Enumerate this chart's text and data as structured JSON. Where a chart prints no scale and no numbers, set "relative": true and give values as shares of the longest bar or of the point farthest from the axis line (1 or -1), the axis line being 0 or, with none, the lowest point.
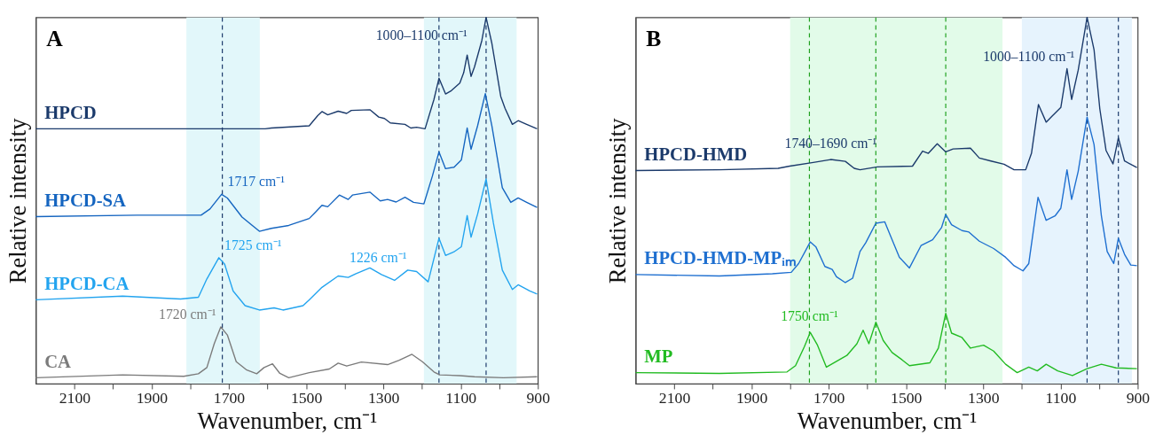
{
  "chart_data": [
    {
      "type": "line",
      "title": "A",
      "xlabel": "Wavenumber, cm⁻¹",
      "ylabel": "Relative intensity",
      "relative": true,
      "xlim": [
        2200,
        900
      ],
      "xticks": [
        2100,
        {
          "value": 2000,
          "label": null
        },
        1900,
        {
          "value": 1800,
          "label": null
        },
        1700,
        {
          "value": 1600,
          "label": null
        },
        1500,
        {
          "value": 1400,
          "label": null
        },
        1300,
        {
          "value": 1200,
          "label": null
        },
        1100,
        {
          "value": 1000,
          "label": null
        },
        900
      ],
      "bands": [
        {
          "axis": "x",
          "from": 1810,
          "to": 1620,
          "color": "#e2f7fa"
        },
        {
          "axis": "x",
          "from": 1195,
          "to": 955,
          "color": "#e2f7fa"
        }
      ],
      "ref_lines": [
        {
          "axis": "x",
          "value": 1717,
          "color": "#1b3a6b",
          "line_style": "dashed"
        },
        {
          "axis": "x",
          "value": 1156,
          "color": "#1b3a6b",
          "line_style": "dashed"
        },
        {
          "axis": "x",
          "value": 1034,
          "color": "#1b3a6b",
          "line_style": "dashed"
        }
      ],
      "annotations": [
        {
          "text": "1000–1100 cm⁻¹",
          "x": 1060,
          "y": 0.88
        },
        {
          "text": "1717 cm⁻¹",
          "x": 1717,
          "y": 0.517
        },
        {
          "text": "1725 cm⁻¹",
          "x": 1725,
          "y": 0.344
        },
        {
          "text": "1226 cm⁻¹",
          "x": 1226,
          "y": 0.31
        },
        {
          "text": "1720 cm⁻¹",
          "x": 1720,
          "y": 0.155
        }
      ],
      "series": [
        {
          "name": "HPCD",
          "color": "#1b3a6b",
          "x": [
            2200,
            1606,
            1590,
            1492,
            1470,
            1459,
            1444,
            1417,
            1395,
            1383,
            1335,
            1312,
            1297,
            1282,
            1244,
            1229,
            1214,
            1192,
            1169,
            1156,
            1139,
            1124,
            1102,
            1092,
            1083,
            1073,
            1064,
            1045,
            1034,
            1019,
            996,
            985,
            966,
            951,
            929,
            902
          ],
          "values": [
            0.696,
            0.696,
            0.698,
            0.704,
            0.732,
            0.743,
            0.734,
            0.744,
            0.738,
            0.746,
            0.748,
            0.728,
            0.724,
            0.712,
            0.708,
            0.698,
            0.7,
            0.696,
            0.776,
            0.834,
            0.791,
            0.8,
            0.821,
            0.849,
            0.897,
            0.839,
            0.865,
            0.937,
            1.0,
            0.929,
            0.784,
            0.752,
            0.708,
            0.718,
            0.708,
            0.696
          ]
        },
        {
          "name": "HPCD-SA",
          "color": "#1565c0",
          "x": [
            2200,
            1938,
            1772,
            1749,
            1719,
            1704,
            1666,
            1621,
            1590,
            1545,
            1492,
            1477,
            1459,
            1444,
            1414,
            1391,
            1380,
            1335,
            1308,
            1289,
            1267,
            1244,
            1222,
            1195,
            1173,
            1156,
            1139,
            1117,
            1098,
            1083,
            1073,
            1056,
            1036,
            1019,
            992,
            970,
            951,
            929,
            902
          ],
          "values": [
            0.456,
            0.46,
            0.46,
            0.477,
            0.517,
            0.507,
            0.455,
            0.416,
            0.424,
            0.432,
            0.451,
            0.467,
            0.487,
            0.483,
            0.515,
            0.503,
            0.515,
            0.523,
            0.499,
            0.503,
            0.496,
            0.509,
            0.495,
            0.491,
            0.567,
            0.633,
            0.587,
            0.591,
            0.611,
            0.698,
            0.64,
            0.704,
            0.792,
            0.704,
            0.535,
            0.495,
            0.507,
            0.495,
            0.481
          ]
        },
        {
          "name": "HPCD-CA",
          "color": "#23a4ef",
          "x": [
            2200,
            1975,
            1825,
            1779,
            1757,
            1726,
            1711,
            1689,
            1658,
            1621,
            1583,
            1560,
            1508,
            1492,
            1459,
            1417,
            1391,
            1372,
            1335,
            1305,
            1271,
            1237,
            1214,
            1184,
            1156,
            1139,
            1117,
            1098,
            1083,
            1073,
            1056,
            1034,
            1015,
            992,
            966,
            951,
            921,
            902
          ],
          "values": [
            0.229,
            0.239,
            0.231,
            0.236,
            0.286,
            0.344,
            0.326,
            0.253,
            0.213,
            0.201,
            0.207,
            0.201,
            0.213,
            0.229,
            0.263,
            0.294,
            0.29,
            0.3,
            0.316,
            0.298,
            0.282,
            0.31,
            0.306,
            0.278,
            0.397,
            0.35,
            0.36,
            0.374,
            0.459,
            0.4,
            0.463,
            0.559,
            0.438,
            0.31,
            0.257,
            0.27,
            0.253,
            0.245
          ]
        },
        {
          "name": "CA",
          "color": "#7b7b7b",
          "x": [
            2200,
            1975,
            1817,
            1779,
            1757,
            1738,
            1721,
            1704,
            1681,
            1655,
            1628,
            1609,
            1587,
            1568,
            1545,
            1492,
            1440,
            1417,
            1395,
            1357,
            1289,
            1259,
            1226,
            1199,
            1169,
            1154,
            1102,
            1064,
            989,
            902
          ],
          "values": [
            0.016,
            0.024,
            0.02,
            0.027,
            0.044,
            0.109,
            0.155,
            0.133,
            0.06,
            0.038,
            0.027,
            0.044,
            0.054,
            0.028,
            0.016,
            0.03,
            0.04,
            0.056,
            0.048,
            0.059,
            0.052,
            0.064,
            0.08,
            0.06,
            0.032,
            0.024,
            0.022,
            0.019,
            0.016,
            0.019
          ]
        }
      ]
    },
    {
      "type": "line",
      "title": "B",
      "xlabel": "Wavenumber, cm⁻¹",
      "ylabel": "Relative intensity",
      "relative": true,
      "xlim": [
        2200,
        900
      ],
      "xticks": [
        2100,
        {
          "value": 2000,
          "label": null
        },
        1900,
        {
          "value": 1800,
          "label": null
        },
        1700,
        {
          "value": 1600,
          "label": null
        },
        1500,
        {
          "value": 1400,
          "label": null
        },
        1300,
        {
          "value": 1200,
          "label": null
        },
        1100,
        {
          "value": 1000,
          "label": null
        },
        900
      ],
      "bands": [
        {
          "axis": "x",
          "from": 1800,
          "to": 1250,
          "color": "#e2fbe9"
        },
        {
          "axis": "x",
          "from": 1200,
          "to": 915,
          "color": "#e6f3fd"
        }
      ],
      "ref_lines": [
        {
          "axis": "x",
          "value": 1750,
          "color": "#1fa01f",
          "line_style": "dashed"
        },
        {
          "axis": "x",
          "value": 1578,
          "color": "#1fa01f",
          "line_style": "dashed"
        },
        {
          "axis": "x",
          "value": 1397,
          "color": "#1fa01f",
          "line_style": "dashed"
        },
        {
          "axis": "x",
          "value": 1031,
          "color": "#1b3a6b",
          "line_style": "dashed"
        },
        {
          "axis": "x",
          "value": 950,
          "color": "#1b3a6b",
          "line_style": "dashed"
        }
      ],
      "annotations": [
        {
          "text": "1000–1100 cm⁻¹",
          "x": 1050,
          "y": 0.86
        },
        {
          "text": "1740–1690 cm⁻¹",
          "x": 1695,
          "y": 0.612
        },
        {
          "text": "1750 cm⁻¹",
          "x": 1750,
          "y": 0.14
        }
      ],
      "series": [
        {
          "name": "HPCD-HMD",
          "color": "#1b3a6b",
          "x": [
            2200,
            1983,
            1831,
            1801,
            1740,
            1695,
            1657,
            1634,
            1619,
            1574,
            1483,
            1457,
            1442,
            1419,
            1397,
            1378,
            1333,
            1310,
            1280,
            1246,
            1220,
            1190,
            1175,
            1157,
            1137,
            1122,
            1099,
            1083,
            1071,
            1054,
            1031,
            1013,
            998,
            982,
            964,
            950,
            934,
            902
          ],
          "values": [
            0.582,
            0.584,
            0.588,
            0.594,
            0.604,
            0.612,
            0.607,
            0.588,
            0.584,
            0.592,
            0.594,
            0.635,
            0.629,
            0.655,
            0.633,
            0.641,
            0.643,
            0.616,
            0.608,
            0.599,
            0.584,
            0.584,
            0.629,
            0.762,
            0.714,
            0.73,
            0.754,
            0.86,
            0.776,
            0.856,
            1.0,
            0.912,
            0.75,
            0.637,
            0.6,
            0.671,
            0.608,
            0.59
          ]
        },
        {
          "name": "HPCD-HMD-MPᵢₘ",
          "color": "#1e6fd0",
          "x": [
            2200,
            1983,
            1846,
            1797,
            1778,
            1759,
            1748,
            1733,
            1710,
            1691,
            1680,
            1657,
            1638,
            1619,
            1604,
            1578,
            1555,
            1536,
            1517,
            1491,
            1461,
            1431,
            1408,
            1397,
            1382,
            1355,
            1337,
            1310,
            1273,
            1242,
            1220,
            1197,
            1182,
            1158,
            1137,
            1114,
            1099,
            1083,
            1071,
            1054,
            1031,
            1013,
            994,
            979,
            962,
            950,
            934,
            918,
            902
          ],
          "values": [
            0.298,
            0.294,
            0.3,
            0.304,
            0.328,
            0.365,
            0.387,
            0.373,
            0.32,
            0.312,
            0.292,
            0.276,
            0.288,
            0.361,
            0.385,
            0.438,
            0.442,
            0.393,
            0.345,
            0.316,
            0.377,
            0.393,
            0.426,
            0.462,
            0.434,
            0.418,
            0.414,
            0.389,
            0.369,
            0.345,
            0.322,
            0.308,
            0.328,
            0.509,
            0.446,
            0.458,
            0.479,
            0.584,
            0.503,
            0.58,
            0.728,
            0.653,
            0.458,
            0.361,
            0.328,
            0.397,
            0.353,
            0.324,
            0.322
          ]
        },
        {
          "name": "MP",
          "color": "#22bb22",
          "x": [
            2200,
            1983,
            1808,
            1786,
            1763,
            1748,
            1729,
            1706,
            1680,
            1653,
            1627,
            1611,
            1596,
            1578,
            1559,
            1536,
            1510,
            1491,
            1438,
            1416,
            1397,
            1382,
            1355,
            1333,
            1299,
            1273,
            1242,
            1212,
            1182,
            1160,
            1137,
            1107,
            1069,
            1031,
            994,
            956,
            902
          ],
          "values": [
            0.03,
            0.028,
            0.032,
            0.049,
            0.101,
            0.14,
            0.105,
            0.045,
            0.061,
            0.077,
            0.109,
            0.146,
            0.109,
            0.168,
            0.118,
            0.085,
            0.065,
            0.049,
            0.057,
            0.097,
            0.192,
            0.138,
            0.126,
            0.097,
            0.105,
            0.089,
            0.053,
            0.03,
            0.045,
            0.035,
            0.053,
            0.035,
            0.022,
            0.041,
            0.053,
            0.043,
            0.041
          ]
        }
      ]
    }
  ]
}
